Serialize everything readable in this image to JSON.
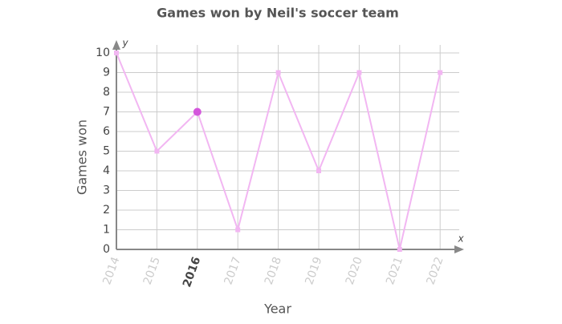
{
  "chart_data": {
    "type": "line",
    "title": "Games won by Neil's soccer team",
    "xlabel": "Year",
    "ylabel": "Games won",
    "x_axis_letter": "x",
    "y_axis_letter": "y",
    "categories": [
      "2014",
      "2015",
      "2016",
      "2017",
      "2018",
      "2019",
      "2020",
      "2021",
      "2022"
    ],
    "series": [
      {
        "name": "Games won",
        "color": "#f2b6f2",
        "values": [
          10,
          5,
          7,
          1,
          9,
          4,
          9,
          0,
          9
        ]
      }
    ],
    "highlight_index": 2,
    "highlight_color": "#d455dc",
    "ylim": [
      0,
      10
    ],
    "yticks": [
      0,
      1,
      2,
      3,
      4,
      5,
      6,
      7,
      8,
      9,
      10
    ],
    "grid": true
  }
}
